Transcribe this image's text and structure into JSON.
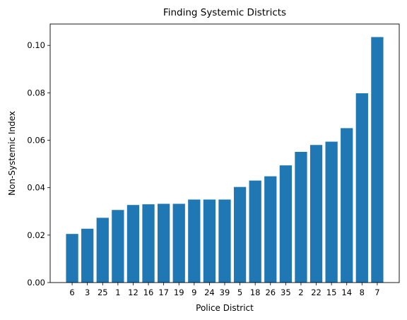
{
  "chart_data": {
    "type": "bar",
    "title": "Finding Systemic Districts",
    "xlabel": "Police District",
    "ylabel": "Non-Systemic Index",
    "categories": [
      "6",
      "3",
      "25",
      "1",
      "12",
      "16",
      "17",
      "19",
      "9",
      "24",
      "39",
      "5",
      "18",
      "26",
      "35",
      "2",
      "22",
      "15",
      "14",
      "8",
      "7"
    ],
    "values": [
      0.0205,
      0.0227,
      0.0273,
      0.0306,
      0.0327,
      0.033,
      0.0332,
      0.0332,
      0.035,
      0.035,
      0.035,
      0.0403,
      0.043,
      0.0448,
      0.0494,
      0.0551,
      0.058,
      0.0594,
      0.0651,
      0.0798,
      0.1035
    ],
    "yticks": [
      "0.00",
      "0.02",
      "0.04",
      "0.06",
      "0.08",
      "0.10"
    ],
    "ylim": [
      0,
      0.109
    ],
    "bar_color": "#1f77b4",
    "grid": false,
    "legend": "none"
  }
}
